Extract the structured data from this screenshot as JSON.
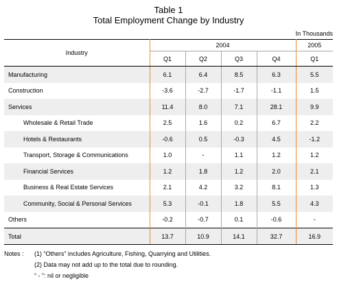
{
  "title": "Table 1",
  "subtitle": "Total Employment Change by Industry",
  "units": "In Thousands",
  "header": {
    "industry": "Industry",
    "year_2004": "2004",
    "year_2005": "2005",
    "quarters": [
      "Q1",
      "Q2",
      "Q3",
      "Q4",
      "Q1"
    ]
  },
  "rows": [
    {
      "label": "Manufacturing",
      "values": [
        "6.1",
        "6.4",
        "8.5",
        "6.3",
        "5.5"
      ]
    },
    {
      "label": "Construction",
      "values": [
        "-3.6",
        "-2.7",
        "-1.7",
        "-1.1",
        "1.5"
      ]
    },
    {
      "label": "Services",
      "values": [
        "11.4",
        "8.0",
        "7.1",
        "28.1",
        "9.9"
      ]
    },
    {
      "label": "Wholesale & Retail Trade",
      "values": [
        "2.5",
        "1.6",
        "0.2",
        "6.7",
        "2.2"
      ]
    },
    {
      "label": "Hotels & Restaurants",
      "values": [
        "-0.6",
        "0.5",
        "-0.3",
        "4.5",
        "-1.2"
      ]
    },
    {
      "label": "Transport, Storage & Communications",
      "values": [
        "1.0",
        "-",
        "1.1",
        "1.2",
        "1.2"
      ]
    },
    {
      "label": "Financial Services",
      "values": [
        "1.2",
        "1.8",
        "1.2",
        "2.0",
        "2.1"
      ]
    },
    {
      "label": "Business & Real Estate Services",
      "values": [
        "2.1",
        "4.2",
        "3.2",
        "8.1",
        "1.3"
      ]
    },
    {
      "label": "Community, Social & Personal Services",
      "values": [
        "5.3",
        "-0.1",
        "1.8",
        "5.5",
        "4.3"
      ]
    },
    {
      "label": "Others",
      "values": [
        "-0.2",
        "-0.7",
        "0.1",
        "-0.6",
        "-"
      ]
    }
  ],
  "total": {
    "label": "Total",
    "values": [
      "13.7",
      "10.9",
      "14.1",
      "32.7",
      "16.9"
    ]
  },
  "notes": {
    "label": "Notes :",
    "n1": "(1)  “Others” includes Agriculture, Fishing, Quarrying and Utilities.",
    "n2": "(2)  Data may not add up to the total due to rounding.",
    "n3": "“ - ”: nil or negligible"
  }
}
